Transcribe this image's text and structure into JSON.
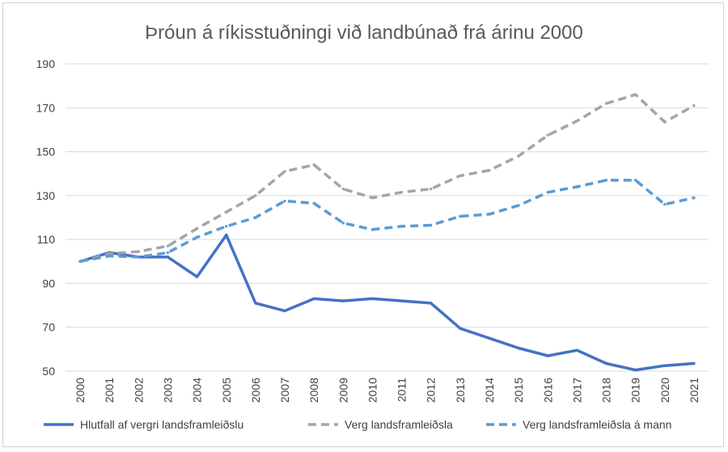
{
  "chart_data": {
    "type": "line",
    "title": "Þróun á ríkisstuðningi við landbúnað frá árinu 2000",
    "xlabel": "",
    "ylabel": "",
    "x": [
      "2000",
      "2001",
      "2002",
      "2003",
      "2004",
      "2005",
      "2006",
      "2007",
      "2008",
      "2009",
      "2010",
      "2011",
      "2012",
      "2013",
      "2014",
      "2015",
      "2016",
      "2017",
      "2018",
      "2019",
      "2020",
      "2021"
    ],
    "ylim": [
      50,
      190
    ],
    "yticks": [
      50,
      70,
      90,
      110,
      130,
      150,
      170,
      190
    ],
    "grid": true,
    "legend_position": "bottom",
    "series": [
      {
        "name": "Hlutfall af vergri landsframleiðslu",
        "color": "#4472c4",
        "style": "solid",
        "values": [
          100,
          104,
          102,
          102,
          93,
          112,
          81,
          77.5,
          83,
          82,
          83,
          82,
          81,
          69.5,
          65,
          60.5,
          57,
          59.5,
          53.5,
          50.5,
          52.5,
          53.5
        ]
      },
      {
        "name": "Verg landsframleiðsla",
        "color": "#a5a5a5",
        "style": "dashed",
        "values": [
          100,
          103.5,
          104.5,
          107,
          115,
          122.5,
          130,
          141,
          144,
          133,
          129,
          131.5,
          133,
          139,
          141.5,
          148,
          157.5,
          164,
          172,
          176,
          163.5,
          171
        ]
      },
      {
        "name": "Verg landsframleiðsla á mann",
        "color": "#5b9bd5",
        "style": "dashed",
        "values": [
          100,
          102.5,
          102,
          104,
          111,
          116,
          120,
          127.5,
          126.5,
          117.5,
          114.5,
          116,
          116.5,
          120.5,
          121.5,
          125.5,
          131.5,
          134,
          137,
          137,
          126,
          129
        ]
      }
    ]
  }
}
